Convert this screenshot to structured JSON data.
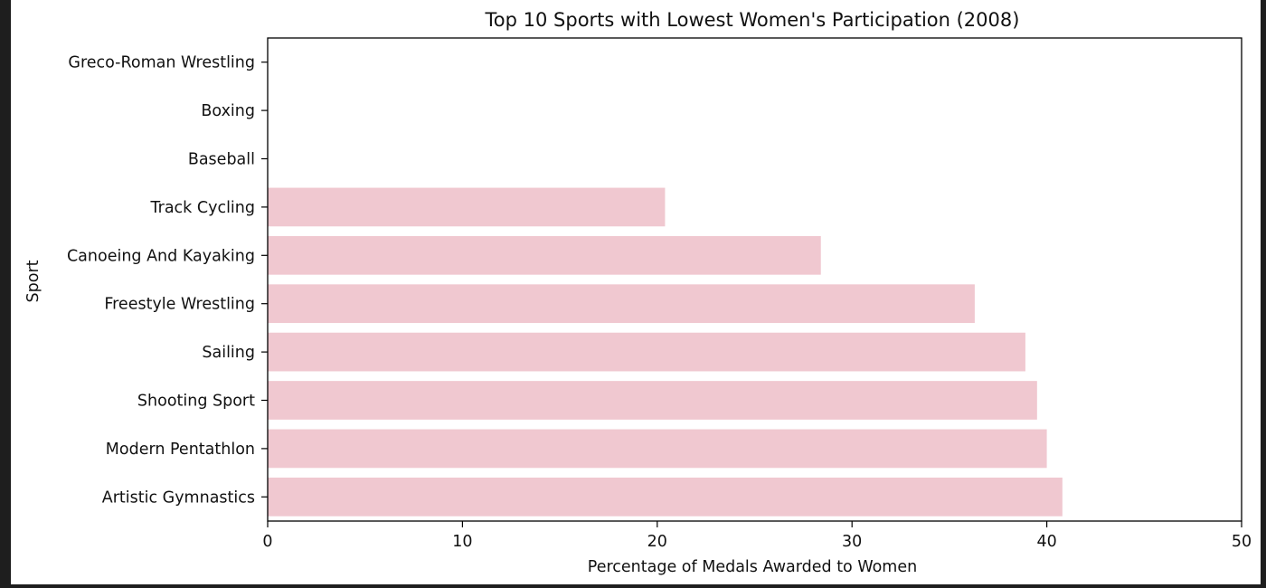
{
  "chart_data": {
    "type": "bar",
    "orientation": "horizontal",
    "title": "Top 10 Sports with Lowest Women's Participation (2008)",
    "xlabel": "Percentage of Medals Awarded to Women",
    "ylabel": "Sport",
    "categories": [
      "Greco-Roman Wrestling",
      "Boxing",
      "Baseball",
      "Track Cycling",
      "Canoeing And Kayaking",
      "Freestyle Wrestling",
      "Sailing",
      "Shooting Sport",
      "Modern Pentathlon",
      "Artistic Gymnastics"
    ],
    "values": [
      0,
      0,
      0,
      20.4,
      28.4,
      36.3,
      38.9,
      39.5,
      40.0,
      40.8
    ],
    "xlim": [
      0,
      50
    ],
    "xticks": [
      "0",
      "10",
      "20",
      "30",
      "40",
      "50"
    ],
    "bar_color": "#f0c8d0",
    "grid": false,
    "legend": "none"
  }
}
